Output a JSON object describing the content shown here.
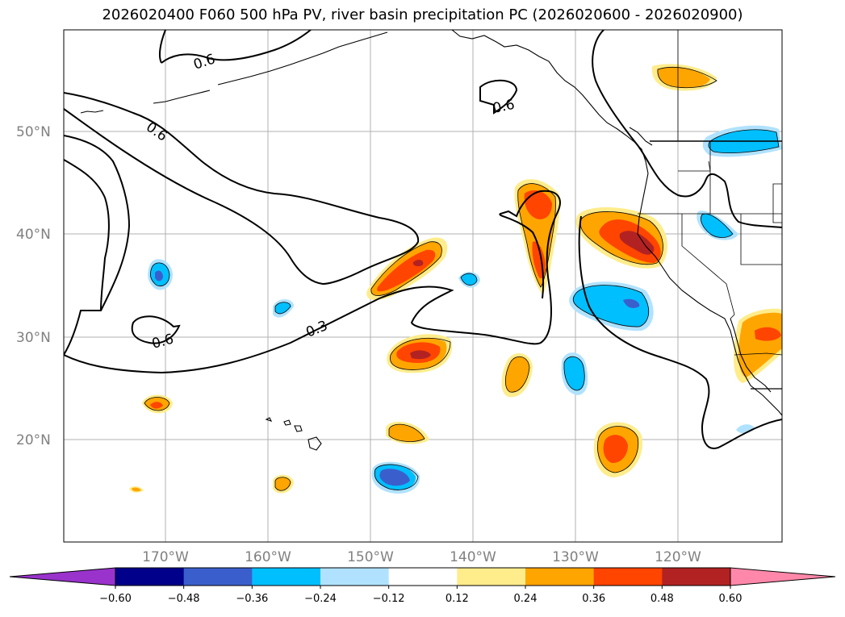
{
  "title": "2026020400 F060 500 hPa PV, river basin precipitation PC (2026020600 - 2026020900)",
  "map": {
    "lat_labels": [
      "50°N",
      "40°N",
      "30°N",
      "20°N"
    ],
    "lon_labels": [
      "170°W",
      "160°W",
      "150°W",
      "140°W",
      "130°W",
      "120°W"
    ],
    "contour_labels": [
      "0.6",
      "0.6",
      "0.6",
      "0.6",
      "0.3"
    ]
  },
  "colorbar": {
    "ticks": [
      "−0.60",
      "−0.48",
      "−0.36",
      "−0.24",
      "−0.12",
      "0.12",
      "0.24",
      "0.36",
      "0.48",
      "0.60"
    ],
    "colors": [
      "#9933cc",
      "#00008b",
      "#3a5fcd",
      "#00bfff",
      "#b0e2ff",
      "#ffffff",
      "#ffec8b",
      "#ffa500",
      "#ff4500",
      "#b22222",
      "#ff88aa"
    ]
  },
  "palette": {
    "light_yellow": "#ffec8b",
    "orange": "#ffa500",
    "red_orange": "#ff4500",
    "dark_red": "#b22222",
    "light_blue": "#b0e2ff",
    "blue": "#00bfff",
    "royal_blue": "#3a5fcd"
  }
}
